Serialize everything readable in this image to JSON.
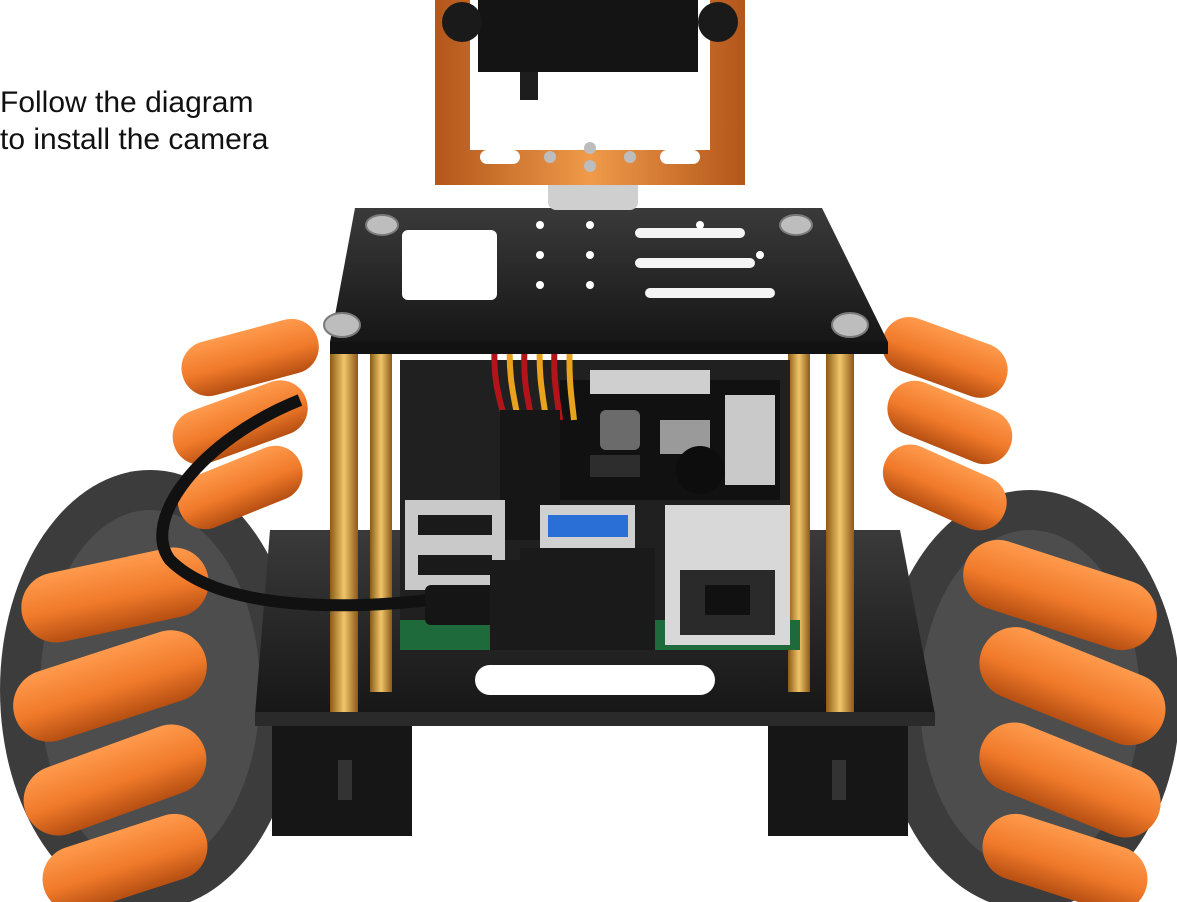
{
  "instruction": {
    "line1": "Follow the diagram",
    "line2": "to install the camera"
  },
  "colors": {
    "roller_orange": "#f07a2a",
    "bracket_orange": "#e07a26",
    "chassis_black": "#1e1e1e",
    "standoff_gold": "#d9a84a",
    "pcb_green": "#1f6a3a",
    "usb_blue": "#2a6fd6"
  },
  "icons": {
    "servo": "servo-motor-icon",
    "bracket": "camera-bracket-icon",
    "chassis": "robot-chassis-icon",
    "wheel": "mecanum-wheel-icon",
    "cable": "usb-camera-cable-icon"
  }
}
